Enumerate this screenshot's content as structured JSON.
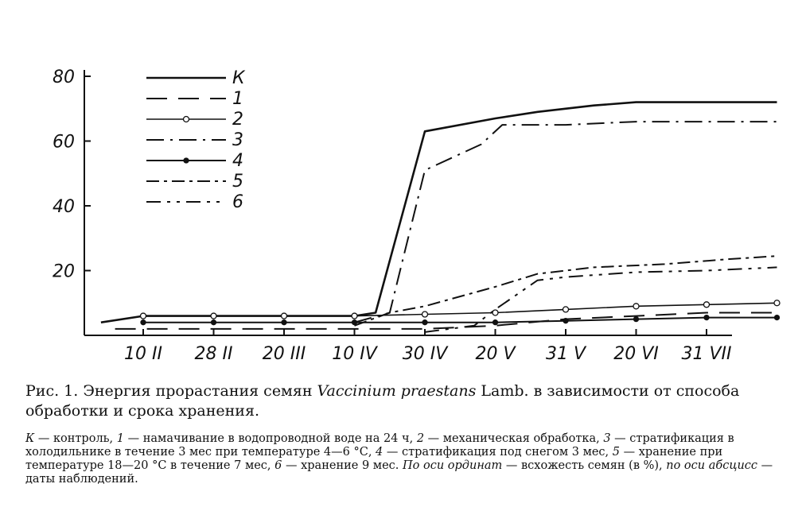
{
  "chart_data": {
    "type": "line",
    "x_categories": [
      "10 II",
      "28 II",
      "20 III",
      "10 IV",
      "30 IV",
      "20 V",
      "31 V",
      "20 VI",
      "31 VII"
    ],
    "y_ticks": [
      "80",
      "60",
      "40",
      "20"
    ],
    "ylim": [
      0,
      80
    ],
    "grid": false,
    "legend_position": "top-left",
    "series": [
      {
        "name": "К",
        "style": "solid",
        "points": [
          [
            -0.6,
            4
          ],
          [
            0,
            6
          ],
          [
            1,
            6
          ],
          [
            2,
            6
          ],
          [
            3,
            6
          ],
          [
            3.3,
            7
          ],
          [
            4,
            63
          ],
          [
            5,
            67
          ],
          [
            5.6,
            69
          ],
          [
            6.4,
            71
          ],
          [
            7,
            72
          ],
          [
            7.7,
            72
          ],
          [
            8.3,
            72
          ],
          [
            9,
            72
          ]
        ]
      },
      {
        "name": "1",
        "style": "dashed",
        "points": [
          [
            -0.4,
            2
          ],
          [
            0,
            2
          ],
          [
            1,
            2
          ],
          [
            2,
            2
          ],
          [
            3,
            2
          ],
          [
            4,
            2
          ],
          [
            5,
            3
          ],
          [
            6,
            5
          ],
          [
            7,
            6
          ],
          [
            8,
            7
          ],
          [
            9,
            7
          ]
        ]
      },
      {
        "name": "2",
        "style": "open-circles",
        "points": [
          [
            0,
            6
          ],
          [
            1,
            6
          ],
          [
            2,
            6
          ],
          [
            3,
            6
          ],
          [
            4,
            6.5
          ],
          [
            5,
            7
          ],
          [
            6,
            8
          ],
          [
            7,
            9
          ],
          [
            8,
            9.5
          ],
          [
            9,
            10
          ]
        ]
      },
      {
        "name": "3",
        "style": "dash-dot",
        "points": [
          [
            3,
            4
          ],
          [
            3.5,
            7
          ],
          [
            4,
            51
          ],
          [
            4.8,
            59
          ],
          [
            5.1,
            65
          ],
          [
            6,
            65
          ],
          [
            7,
            66
          ],
          [
            8,
            66
          ],
          [
            9,
            66
          ]
        ]
      },
      {
        "name": "4",
        "style": "solid-dots",
        "points": [
          [
            0,
            4
          ],
          [
            1,
            4
          ],
          [
            2,
            4
          ],
          [
            3,
            4
          ],
          [
            4,
            4
          ],
          [
            5,
            4
          ],
          [
            6,
            4.5
          ],
          [
            7,
            5
          ],
          [
            8,
            5.5
          ],
          [
            9,
            5.5
          ]
        ]
      },
      {
        "name": "5",
        "style": "dash-dot-dense",
        "points": [
          [
            3,
            3
          ],
          [
            3.5,
            7
          ],
          [
            4,
            9
          ],
          [
            5,
            15
          ],
          [
            5.6,
            19
          ],
          [
            6.4,
            21
          ],
          [
            7.4,
            22
          ],
          [
            8.3,
            23.5
          ],
          [
            9,
            24.5
          ]
        ]
      },
      {
        "name": "6",
        "style": "dash-dotted",
        "points": [
          [
            4,
            1
          ],
          [
            4.7,
            3
          ],
          [
            5,
            8
          ],
          [
            5.6,
            17
          ],
          [
            6,
            18
          ],
          [
            7,
            19.5
          ],
          [
            8,
            20
          ],
          [
            9,
            21
          ]
        ]
      }
    ],
    "legend": [
      "К",
      "1",
      "2",
      "3",
      "4",
      "5",
      "6"
    ]
  },
  "caption": {
    "title_1": "Рис. 1. Энергия прорастания семян ",
    "title_species": "Vaccinium praestans",
    "title_2": " Lamb. в зависимости от способа обработки и срока хранения.",
    "notes_1": "К",
    "notes_2": " — контроль, ",
    "notes_3": "1",
    "notes_4": " — намачивание в водопроводной воде на 24 ч, ",
    "notes_5": "2",
    "notes_6": " — механическая обработка, ",
    "notes_7": "3",
    "notes_8": " — стратификация в холодильнике в течение 3 мес при температуре 4—6 °С, ",
    "notes_9": "4",
    "notes_10": " — стратификация под снегом 3 мес, ",
    "notes_11": "5",
    "notes_12": " — хранение при температуре 18—20 °С в течение 7 мес, ",
    "notes_13": "6",
    "notes_14": " — хранение 9 мес. ",
    "notes_15": "По оси ординат",
    "notes_16": " — всхожесть семян (в %), ",
    "notes_17": "по оси абсцисс",
    "notes_18": " — даты наблюдений."
  }
}
